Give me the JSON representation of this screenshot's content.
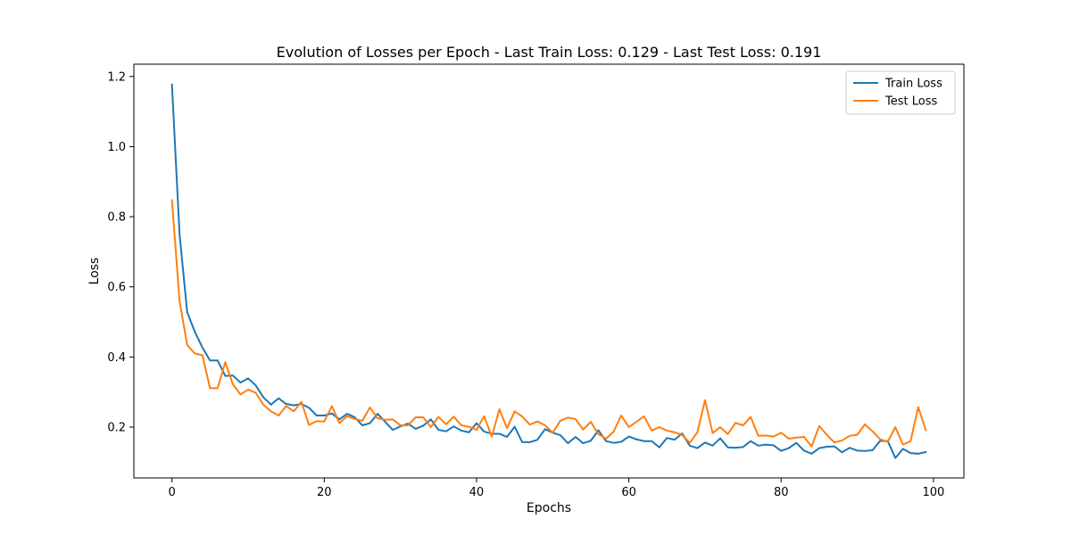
{
  "chart_data": {
    "type": "line",
    "title": "Evolution of Losses per Epoch - Last Train Loss: 0.129 - Last Test Loss: 0.191",
    "xlabel": "Epochs",
    "ylabel": "Loss",
    "xlim": [
      -5,
      104
    ],
    "ylim": [
      0.055,
      1.235
    ],
    "xticks": [
      0,
      20,
      40,
      60,
      80,
      100
    ],
    "yticks": [
      0.2,
      0.4,
      0.6,
      0.8,
      1.0,
      1.2
    ],
    "ytick_labels": [
      "0.2",
      "0.4",
      "0.6",
      "0.8",
      "1.0",
      "1.2"
    ],
    "legend_position": "top-right",
    "grid": false,
    "series": [
      {
        "name": "Train Loss",
        "color": "#1f77b4",
        "values": [
          1.177,
          0.75,
          0.528,
          0.472,
          0.427,
          0.39,
          0.39,
          0.346,
          0.347,
          0.327,
          0.339,
          0.319,
          0.285,
          0.264,
          0.282,
          0.266,
          0.262,
          0.266,
          0.255,
          0.233,
          0.233,
          0.239,
          0.222,
          0.238,
          0.228,
          0.205,
          0.211,
          0.238,
          0.215,
          0.192,
          0.202,
          0.21,
          0.195,
          0.204,
          0.222,
          0.192,
          0.188,
          0.202,
          0.19,
          0.185,
          0.211,
          0.187,
          0.181,
          0.181,
          0.172,
          0.201,
          0.157,
          0.157,
          0.164,
          0.194,
          0.184,
          0.177,
          0.154,
          0.172,
          0.154,
          0.161,
          0.191,
          0.16,
          0.155,
          0.158,
          0.173,
          0.165,
          0.16,
          0.16,
          0.142,
          0.169,
          0.164,
          0.182,
          0.147,
          0.14,
          0.156,
          0.147,
          0.168,
          0.142,
          0.141,
          0.143,
          0.16,
          0.147,
          0.15,
          0.148,
          0.132,
          0.14,
          0.155,
          0.133,
          0.124,
          0.14,
          0.144,
          0.145,
          0.128,
          0.141,
          0.133,
          0.132,
          0.134,
          0.161,
          0.16,
          0.112,
          0.138,
          0.126,
          0.124,
          0.129
        ]
      },
      {
        "name": "Test Loss",
        "color": "#ff7f0e",
        "values": [
          0.847,
          0.56,
          0.434,
          0.41,
          0.405,
          0.311,
          0.311,
          0.385,
          0.322,
          0.293,
          0.307,
          0.298,
          0.264,
          0.245,
          0.233,
          0.26,
          0.245,
          0.272,
          0.206,
          0.217,
          0.216,
          0.26,
          0.211,
          0.231,
          0.223,
          0.218,
          0.256,
          0.225,
          0.221,
          0.222,
          0.205,
          0.205,
          0.228,
          0.228,
          0.2,
          0.229,
          0.208,
          0.23,
          0.205,
          0.201,
          0.192,
          0.231,
          0.173,
          0.251,
          0.197,
          0.245,
          0.23,
          0.207,
          0.216,
          0.205,
          0.184,
          0.218,
          0.227,
          0.223,
          0.193,
          0.215,
          0.18,
          0.167,
          0.187,
          0.233,
          0.2,
          0.215,
          0.231,
          0.19,
          0.2,
          0.19,
          0.185,
          0.178,
          0.155,
          0.185,
          0.277,
          0.183,
          0.2,
          0.18,
          0.212,
          0.205,
          0.229,
          0.175,
          0.176,
          0.173,
          0.184,
          0.167,
          0.17,
          0.172,
          0.145,
          0.203,
          0.178,
          0.156,
          0.162,
          0.175,
          0.178,
          0.208,
          0.188,
          0.165,
          0.158,
          0.2,
          0.15,
          0.16,
          0.257,
          0.191
        ]
      }
    ]
  }
}
